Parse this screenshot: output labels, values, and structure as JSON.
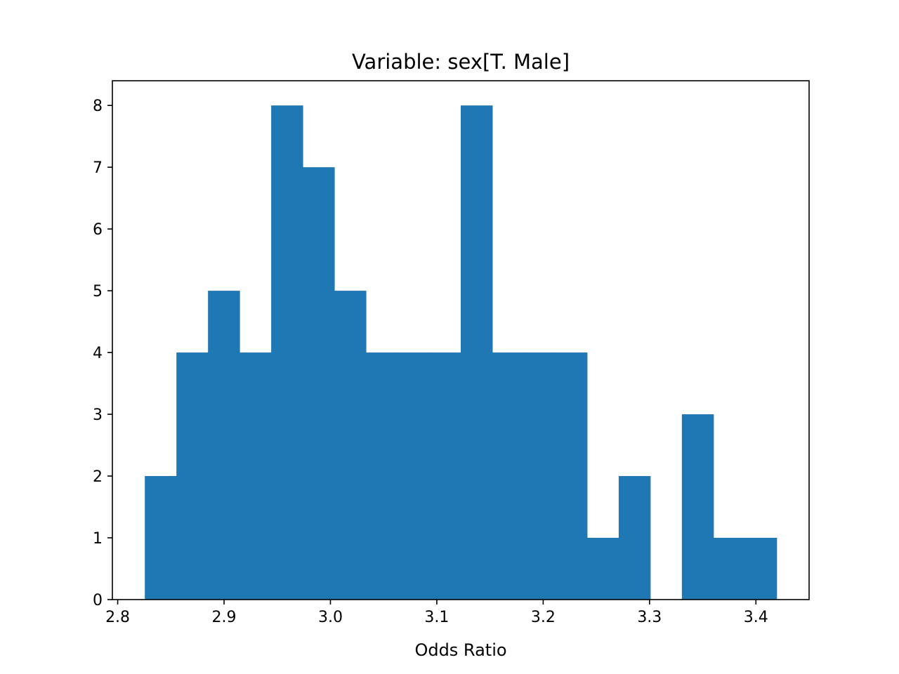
{
  "chart_data": {
    "type": "bar",
    "title": "Variable: sex[T. Male]",
    "xlabel": "Odds Ratio",
    "ylabel": "",
    "xlim": [
      2.795,
      3.45
    ],
    "ylim": [
      0,
      8.4
    ],
    "xticks": [
      2.8,
      2.9,
      3.0,
      3.1,
      3.2,
      3.3,
      3.4
    ],
    "xtick_labels": [
      "2.8",
      "2.9",
      "3.0",
      "3.1",
      "3.2",
      "3.3",
      "3.4"
    ],
    "yticks": [
      0,
      1,
      2,
      3,
      4,
      5,
      6,
      7,
      8
    ],
    "ytick_labels": [
      "0",
      "1",
      "2",
      "3",
      "4",
      "5",
      "6",
      "7",
      "8"
    ],
    "bin_edges": [
      2.8255,
      2.8552,
      2.8849,
      2.9146,
      2.9443,
      2.974,
      3.0037,
      3.0334,
      3.0631,
      3.0928,
      3.1225,
      3.1522,
      3.1819,
      3.2116,
      3.2413,
      3.271,
      3.3007,
      3.3304,
      3.3601,
      3.3898,
      3.4195
    ],
    "counts": [
      2,
      4,
      5,
      4,
      8,
      7,
      5,
      4,
      4,
      4,
      8,
      4,
      4,
      4,
      1,
      2,
      0,
      3,
      1,
      1
    ],
    "grid": false,
    "bar_color": "#1f77b4"
  }
}
